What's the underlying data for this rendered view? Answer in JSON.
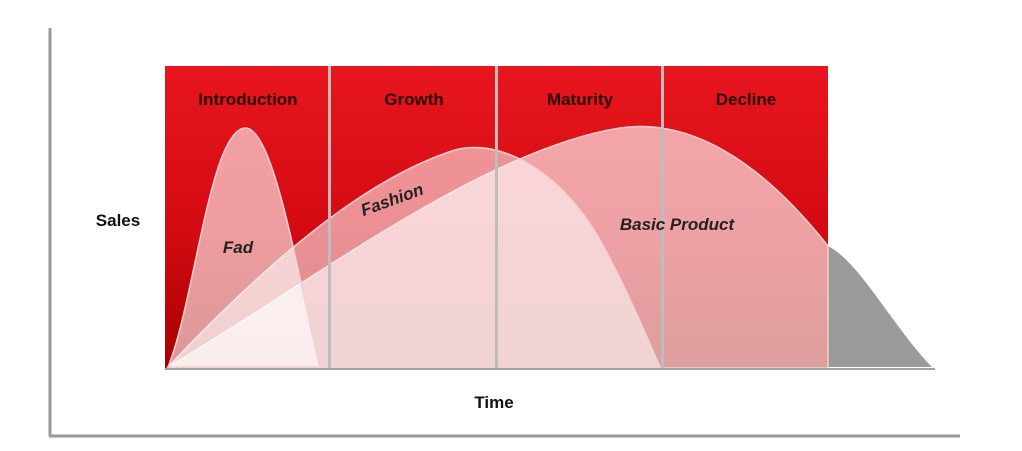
{
  "diagram": {
    "axes": {
      "y_label": "Sales",
      "x_label": "Time"
    },
    "stages": [
      {
        "label": "Introduction"
      },
      {
        "label": "Growth"
      },
      {
        "label": "Maturity"
      },
      {
        "label": "Decline"
      }
    ],
    "curves": [
      {
        "label": "Fad"
      },
      {
        "label": "Fashion"
      },
      {
        "label": "Basic Product"
      }
    ],
    "colors": {
      "stage_top": "#e8161e",
      "stage_bottom": "#a50000",
      "curve_fill": "#ffffff",
      "curve_edge": "#f3c8c8",
      "tail_fill": "#9a9a9a",
      "axis_line": "#9a9a9a",
      "stage_divider": "#bdbdbd"
    }
  }
}
